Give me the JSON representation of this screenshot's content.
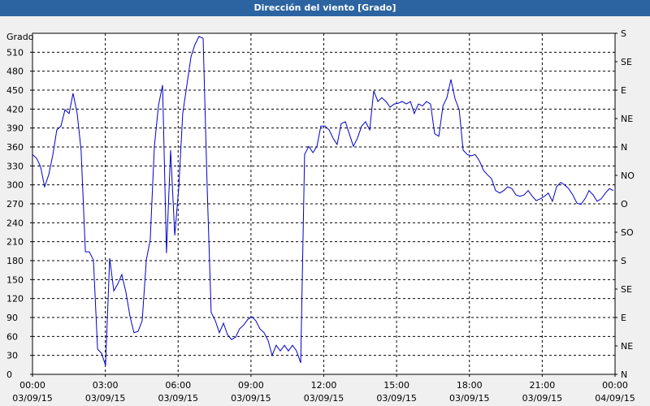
{
  "chart_data": {
    "type": "line",
    "title": "Dirección del viento [Grado]",
    "y_label": "Grado",
    "color": "#0000cc",
    "grid": true,
    "x": [
      0,
      0.17,
      0.33,
      0.5,
      0.67,
      0.84,
      1.0,
      1.17,
      1.34,
      1.51,
      1.67,
      1.84,
      2.0,
      2.18,
      2.34,
      2.51,
      2.68,
      2.85,
      3.01,
      3.18,
      3.35,
      3.51,
      3.68,
      3.85,
      4.02,
      4.18,
      4.35,
      4.52,
      4.69,
      4.85,
      5.02,
      5.19,
      5.36,
      5.52,
      5.69,
      5.86,
      6.03,
      6.19,
      6.36,
      6.53,
      6.69,
      6.86,
      7.03,
      7.2,
      7.36,
      7.53,
      7.7,
      7.87,
      8.03,
      8.2,
      8.37,
      8.53,
      8.7,
      8.87,
      9.04,
      9.2,
      9.37,
      9.54,
      9.71,
      9.87,
      10.04,
      10.21,
      10.38,
      10.54,
      10.71,
      10.88,
      11.05,
      11.21,
      11.38,
      11.55,
      11.72,
      11.88,
      12.05,
      12.22,
      12.38,
      12.55,
      12.72,
      12.89,
      13.05,
      13.22,
      13.39,
      13.56,
      13.72,
      13.89,
      14.06,
      14.23,
      14.39,
      14.56,
      14.73,
      14.9,
      15.06,
      15.23,
      15.4,
      15.57,
      15.73,
      15.9,
      16.07,
      16.23,
      16.4,
      16.57,
      16.74,
      16.91,
      17.07,
      17.24,
      17.41,
      17.58,
      17.74,
      17.91,
      18.08,
      18.24,
      18.41,
      18.58,
      18.74,
      18.91,
      19.08,
      19.25,
      19.41,
      19.58,
      19.75,
      19.92,
      20.08,
      20.25,
      20.42,
      20.59,
      20.75,
      20.92,
      21.09,
      21.25,
      21.42,
      21.59,
      21.76,
      21.92,
      22.09,
      22.26,
      22.43,
      22.59,
      22.76,
      22.93,
      23.1,
      23.26,
      23.43,
      23.6,
      23.77,
      23.93
    ],
    "values": [
      348,
      342,
      329,
      297,
      316,
      348,
      387,
      393,
      419,
      413,
      445,
      413,
      355,
      194,
      194,
      181,
      40,
      33,
      14,
      184,
      132,
      143,
      158,
      130,
      91,
      66,
      68,
      85,
      181,
      213,
      361,
      426,
      458,
      192,
      355,
      220,
      297,
      413,
      458,
      503,
      522,
      535,
      532,
      291,
      98,
      85,
      66,
      81,
      63,
      55,
      59,
      72,
      78,
      87,
      91,
      85,
      72,
      66,
      53,
      30,
      46,
      37,
      46,
      37,
      46,
      37,
      18,
      348,
      361,
      351,
      361,
      393,
      393,
      387,
      374,
      364,
      397,
      400,
      381,
      361,
      374,
      393,
      400,
      387,
      449,
      432,
      438,
      432,
      423,
      428,
      429,
      432,
      428,
      432,
      413,
      428,
      425,
      432,
      428,
      381,
      377,
      425,
      438,
      467,
      436,
      419,
      355,
      348,
      346,
      348,
      338,
      323,
      316,
      310,
      291,
      287,
      291,
      297,
      294,
      284,
      282,
      284,
      291,
      282,
      275,
      278,
      282,
      287,
      274,
      297,
      304,
      300,
      294,
      284,
      271,
      269,
      278,
      291,
      284,
      274,
      278,
      287,
      294,
      291
    ],
    "xlim": [
      0,
      24
    ],
    "xticks": [
      {
        "value": 0,
        "label": "00:00"
      },
      {
        "value": 3,
        "label": "03:00"
      },
      {
        "value": 6,
        "label": "06:00"
      },
      {
        "value": 9,
        "label": "09:00"
      },
      {
        "value": 12,
        "label": "12:00"
      },
      {
        "value": 15,
        "label": "15:00"
      },
      {
        "value": 18,
        "label": "18:00"
      },
      {
        "value": 21,
        "label": "21:00"
      },
      {
        "value": 24,
        "label": "00:00"
      }
    ],
    "xtick_dates": [
      "03/09/15",
      "03/09/15",
      "03/09/15",
      "03/09/15",
      "03/09/15",
      "03/09/15",
      "03/09/15",
      "03/09/15",
      "04/09/15"
    ],
    "ylim": [
      0,
      540
    ],
    "yticks": [
      0,
      30,
      60,
      90,
      120,
      150,
      180,
      210,
      240,
      270,
      300,
      330,
      360,
      390,
      420,
      450,
      480,
      510
    ],
    "y2lim": [
      0,
      540
    ],
    "y2ticks": [
      {
        "value": 0,
        "label": "N"
      },
      {
        "value": 45,
        "label": "NE"
      },
      {
        "value": 90,
        "label": "E"
      },
      {
        "value": 135,
        "label": "SE"
      },
      {
        "value": 180,
        "label": "S"
      },
      {
        "value": 225,
        "label": "SO"
      },
      {
        "value": 270,
        "label": "O"
      },
      {
        "value": 315,
        "label": "NO"
      },
      {
        "value": 360,
        "label": "N"
      },
      {
        "value": 405,
        "label": "NE"
      },
      {
        "value": 450,
        "label": "E"
      },
      {
        "value": 495,
        "label": "SE"
      },
      {
        "value": 540,
        "label": "S"
      }
    ]
  }
}
